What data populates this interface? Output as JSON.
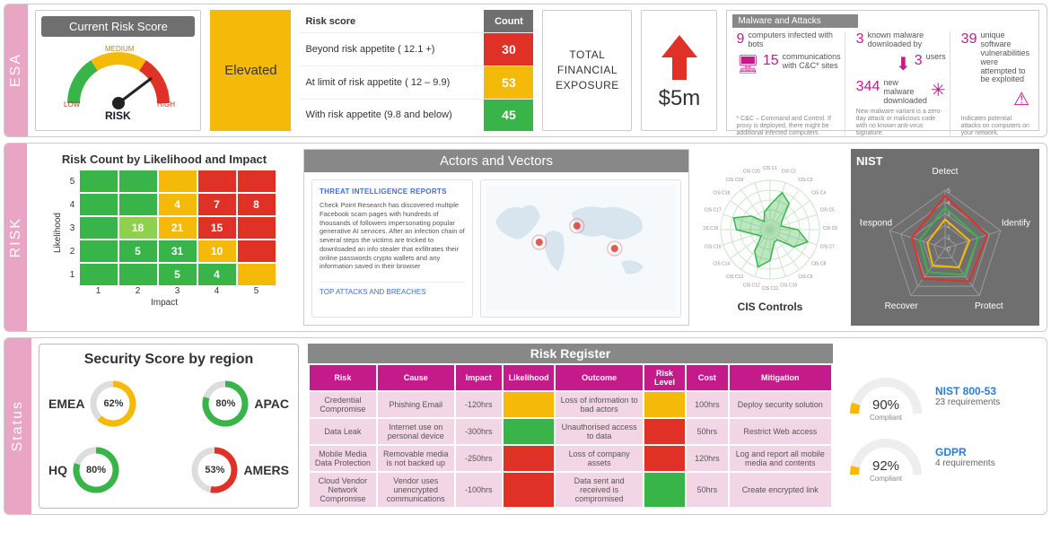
{
  "accent_pink": "#c51a8a",
  "tab_bg": "#E8A5C4",
  "grey_header": "#6f6f6f",
  "esa": {
    "label": "ESA",
    "risk_score": {
      "title": "Current Risk Score",
      "gauge": {
        "low": "LOW",
        "med": "MEDIUM",
        "high": "HIGH",
        "caption": "RISK",
        "colors": {
          "low": "#38b449",
          "med": "#f5b90a",
          "high": "#e03127"
        }
      }
    },
    "elevated": {
      "label": "Elevated",
      "bg": "#F5B90A"
    },
    "risk_table": {
      "col1": "Risk score",
      "col2": "Count",
      "rows": [
        {
          "label": "Beyond risk appetite ( 12.1 +)",
          "count": 30,
          "color": "#e03127"
        },
        {
          "label": "At limit of risk appetite ( 12 – 9.9)",
          "count": 53,
          "color": "#f5b90a"
        },
        {
          "label": "With risk appetite  (9.8 and below)",
          "count": 45,
          "color": "#38b449"
        }
      ]
    },
    "total": {
      "l1": "TOTAL",
      "l2": "FINANCIAL",
      "l3": "EXPOSURE"
    },
    "arrow": {
      "amount": "$5m",
      "color": "#e03127"
    },
    "malware": {
      "title": "Malware and Attacks",
      "col1": {
        "a_num": "9",
        "a_txt": "computers infected with bots",
        "b_num": "15",
        "b_txt": "communications with C&C* sites",
        "foot": "* C&C – Command and Control. If proxy is deployed, there might be additional infected computers."
      },
      "col2": {
        "a_num": "3",
        "a_txt": "known malware downloaded by",
        "a_sub_num": "3",
        "a_sub_txt": "users",
        "b_num": "344",
        "b_txt": "new malware downloaded",
        "foot": "New malware variant is a zero-day attack or malicious code with no known anti-virus signature."
      },
      "col3": {
        "a_num": "39",
        "a_txt": "unique software vulnerabilities were attempted to be exploited",
        "foot": "Indicates potential attacks on computers on your network."
      }
    }
  },
  "risk": {
    "label": "RISK",
    "heatmap": {
      "title": "Risk Count by Likelihood and Impact",
      "ylabel": "Likelihood",
      "xlabel": "Impact",
      "xticks": [
        "1",
        "2",
        "3",
        "4",
        "5"
      ],
      "yticks": [
        "5",
        "4",
        "3",
        "2",
        "1"
      ],
      "colors": {
        "g": "#38b449",
        "lg": "#8fd14f",
        "y": "#f5b90a",
        "r": "#e03127"
      },
      "grid": [
        [
          {
            "c": "g"
          },
          {
            "c": "g"
          },
          {
            "c": "y"
          },
          {
            "c": "r"
          },
          {
            "c": "r"
          }
        ],
        [
          {
            "c": "g"
          },
          {
            "c": "g"
          },
          {
            "c": "y",
            "v": 4
          },
          {
            "c": "r",
            "v": 7
          },
          {
            "c": "r",
            "v": 8
          }
        ],
        [
          {
            "c": "g"
          },
          {
            "c": "lg",
            "v": 18
          },
          {
            "c": "y",
            "v": 21
          },
          {
            "c": "r",
            "v": 15
          },
          {
            "c": "r"
          }
        ],
        [
          {
            "c": "g"
          },
          {
            "c": "g",
            "v": 5
          },
          {
            "c": "g",
            "v": 31
          },
          {
            "c": "y",
            "v": 10
          },
          {
            "c": "r"
          }
        ],
        [
          {
            "c": "g"
          },
          {
            "c": "g"
          },
          {
            "c": "g",
            "v": 5
          },
          {
            "c": "g",
            "v": 4
          },
          {
            "c": "y"
          }
        ]
      ]
    },
    "actors": {
      "title": "Actors and Vectors",
      "tp_title": "THREAT INTELLIGENCE REPORTS",
      "tp_body": "Check Point Research has discovered multiple Facebook scam pages with hundreds of thousands of followers impersonating popular generative AI services. After an infection chain of several steps the victims are tricked to downloaded an info stealer that exfiltrates their online passwords crypto wallets and any information saved in their browser",
      "tp_link": "TOP ATTACKS AND BREACHES",
      "map_points": [
        {
          "x": 0.28,
          "y": 0.45
        },
        {
          "x": 0.48,
          "y": 0.32
        },
        {
          "x": 0.68,
          "y": 0.5
        }
      ]
    },
    "cis": {
      "title": "CIS Controls",
      "labels": [
        "CIS C1",
        "CIS C2",
        "CIS C3",
        "CIS C4",
        "CIS C5",
        "CIS C6",
        "CIS C7",
        "CIS C8",
        "CIS C9",
        "CIS C10",
        "CIS C11",
        "CIS C12",
        "CIS C13",
        "CIS C14",
        "CIS C15",
        "CIS C16",
        "CIS C17",
        "CIS C18",
        "CIS C19",
        "CIS C20"
      ]
    },
    "nist": {
      "title": "NIST",
      "axes": [
        "Detect",
        "Identify",
        "Protect",
        "Recover",
        "Respond"
      ],
      "scale": [
        0,
        1,
        2,
        3,
        4,
        5
      ],
      "series": [
        {
          "color": "#e03127",
          "vals": [
            4.5,
            3.8,
            3.5,
            3.2,
            3.0
          ]
        },
        {
          "color": "#38b449",
          "vals": [
            3.5,
            3.0,
            2.8,
            2.5,
            2.3
          ]
        },
        {
          "color": "#f5b90a",
          "vals": [
            2.5,
            2.2,
            2.0,
            1.8,
            1.6
          ]
        }
      ]
    }
  },
  "status": {
    "label": "Status",
    "sec_score": {
      "title": "Security Score by region",
      "items": [
        {
          "region": "EMEA",
          "pct": 62,
          "color": "#f5b90a"
        },
        {
          "region": "APAC",
          "pct": 80,
          "color": "#38b449",
          "rev": true
        },
        {
          "region": "HQ",
          "pct": 80,
          "color": "#38b449"
        },
        {
          "region": "AMERS",
          "pct": 53,
          "color": "#e03127",
          "rev": true
        }
      ]
    },
    "register": {
      "title": "Risk Register",
      "cols": [
        "Risk",
        "Cause",
        "Impact",
        "Likelihood",
        "Outcome",
        "Risk Level",
        "Cost",
        "Mitigation"
      ],
      "widths": [
        "13%",
        "15%",
        "9%",
        "10%",
        "17%",
        "8%",
        "8%",
        "20%"
      ],
      "rows": [
        {
          "risk": "Credential Compromise",
          "cause": "Phishing Email",
          "impact": "-120hrs",
          "lik": "#f5b90a",
          "outcome": "Loss of information to bad actors",
          "lvl": "#f5b90a",
          "cost": "100hrs",
          "mit": "Deploy security solution"
        },
        {
          "risk": "Data Leak",
          "cause": "Internet use on personal device",
          "impact": "-300hrs",
          "lik": "#38b449",
          "outcome": "Unauthorised access to data",
          "lvl": "#e03127",
          "cost": "50hrs",
          "mit": "Restrict Web access"
        },
        {
          "risk": "Mobile Media Data Protection",
          "cause": "Removable media is not backed up",
          "impact": "-250hrs",
          "lik": "#e03127",
          "outcome": "Loss of company assets",
          "lvl": "#e03127",
          "cost": "120hrs",
          "mit": "Log and report all mobile media and contents"
        },
        {
          "risk": "Cloud Vendor Network Compromise",
          "cause": "Vendor uses unencrypted communications",
          "impact": "-100hrs",
          "lik": "#e03127",
          "outcome": "Data sent and received is compromised",
          "lvl": "#38b449",
          "cost": "50hrs",
          "mit": "Create encrypted link"
        }
      ]
    },
    "compliance": [
      {
        "pct": 90,
        "sub": "Compliant",
        "label": "NIST 800-53",
        "req": "23 requirements",
        "color": "#f5b90a"
      },
      {
        "pct": 92,
        "sub": "Compliant",
        "label": "GDPR",
        "req": "4 requirements",
        "color": "#f5b90a"
      }
    ]
  }
}
